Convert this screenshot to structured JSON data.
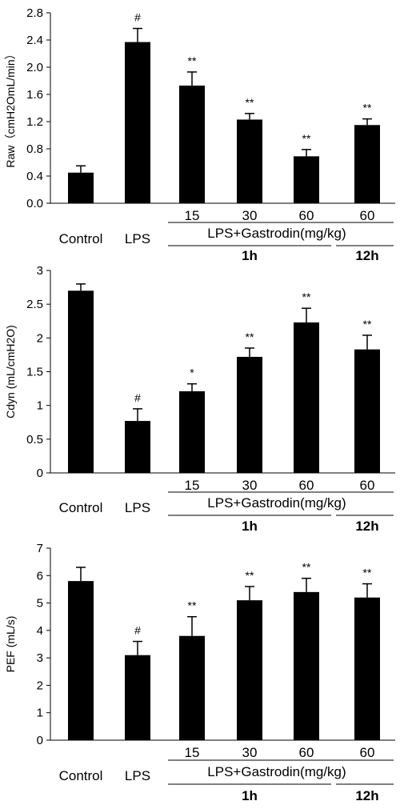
{
  "chart_data": [
    {
      "type": "bar",
      "ylabel": "Raw（cmH2OmL/min）",
      "ylim": [
        0,
        2.8
      ],
      "ytick_step": 0.4,
      "ytick_decimals": 1,
      "categories": [
        "Control",
        "LPS",
        "15",
        "30",
        "60",
        "60"
      ],
      "values": [
        0.45,
        2.37,
        1.73,
        1.23,
        0.69,
        1.15
      ],
      "errors": [
        0.1,
        0.2,
        0.2,
        0.09,
        0.1,
        0.09
      ],
      "annotations": [
        "",
        "#",
        "**",
        "**",
        "**",
        "**"
      ],
      "group_label": "LPS+Gastrodin(mg/kg)",
      "time_labels": [
        "1h",
        "12h"
      ],
      "bar_color": "#000000"
    },
    {
      "type": "bar",
      "ylabel": "Cdyn (mL/cmH2O)",
      "ylim": [
        0,
        3
      ],
      "ytick_step": 0.5,
      "ytick_decimals": -1,
      "categories": [
        "Control",
        "LPS",
        "15",
        "30",
        "60",
        "60"
      ],
      "values": [
        2.7,
        0.77,
        1.21,
        1.72,
        2.23,
        1.83
      ],
      "errors": [
        0.1,
        0.18,
        0.11,
        0.13,
        0.21,
        0.21
      ],
      "annotations": [
        "",
        "#",
        "*",
        "**",
        "**",
        "**"
      ],
      "group_label": "LPS+Gastrodin(mg/kg)",
      "time_labels": [
        "1h",
        "12h"
      ],
      "bar_color": "#000000"
    },
    {
      "type": "bar",
      "ylabel": "PEF (mL/s)",
      "ylim": [
        0,
        7
      ],
      "ytick_step": 1,
      "ytick_decimals": 0,
      "categories": [
        "Control",
        "LPS",
        "15",
        "30",
        "60",
        "60"
      ],
      "values": [
        5.8,
        3.1,
        3.8,
        5.1,
        5.4,
        5.2
      ],
      "errors": [
        0.5,
        0.5,
        0.7,
        0.5,
        0.5,
        0.5
      ],
      "annotations": [
        "",
        "#",
        "**",
        "**",
        "**",
        "**"
      ],
      "group_label": "LPS+Gastrodin(mg/kg)",
      "time_labels": [
        "1h",
        "12h"
      ],
      "bar_color": "#000000"
    }
  ]
}
